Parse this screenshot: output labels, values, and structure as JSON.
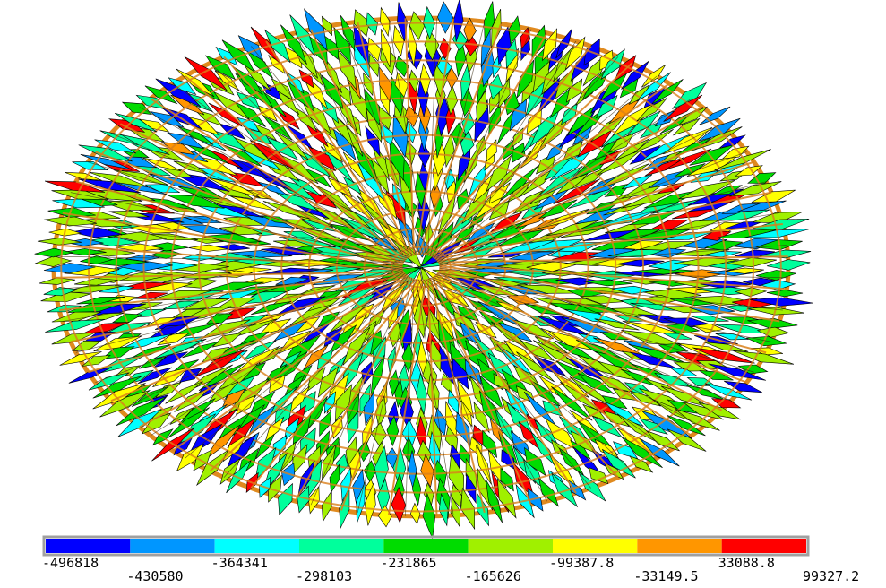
{
  "legend": {
    "colors": [
      "#0000ff",
      "#0096ff",
      "#00ffff",
      "#00ff9c",
      "#00dc00",
      "#a0f000",
      "#ffff00",
      "#ff9600",
      "#ff0000"
    ],
    "labels": [
      "-496818",
      "-430580",
      "-364341",
      "-298103",
      "-231865",
      "-165626",
      "-99387.8",
      "-33149.5",
      "33088.8",
      "99327.2"
    ]
  }
}
